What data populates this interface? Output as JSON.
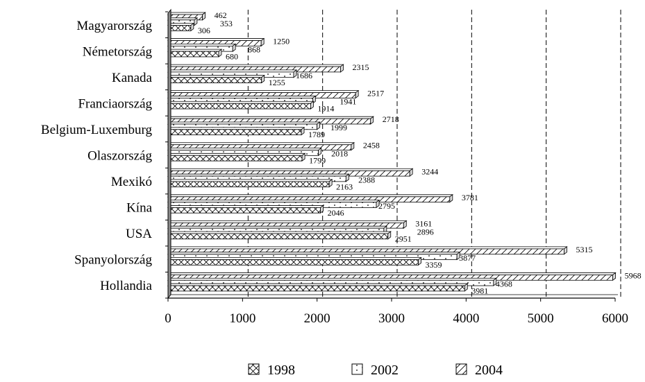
{
  "chart_data": {
    "type": "bar",
    "orientation": "horizontal",
    "categories": [
      "Magyarország",
      "Németország",
      "Kanada",
      "Franciaország",
      "Belgium-Luxemburg",
      "Olaszország",
      "Mexikó",
      "Kína",
      "USA",
      "Spanyolország",
      "Hollandia"
    ],
    "series": [
      {
        "name": "1998",
        "pattern": "crosshatch",
        "values": [
          306,
          680,
          1255,
          1914,
          1789,
          1799,
          2163,
          2046,
          2951,
          3359,
          3981
        ]
      },
      {
        "name": "2002",
        "pattern": "dots",
        "values": [
          353,
          868,
          1686,
          1941,
          1999,
          2018,
          2388,
          2795,
          2896,
          3877,
          4368
        ]
      },
      {
        "name": "2004",
        "pattern": "diagonal",
        "values": [
          462,
          1250,
          2315,
          2517,
          2718,
          2458,
          3244,
          3781,
          3161,
          5315,
          5968
        ]
      }
    ],
    "x_ticks": [
      "0",
      "1000",
      "2000",
      "3000",
      "4000",
      "5000",
      "6000"
    ],
    "xlim": [
      0,
      6000
    ],
    "grid": "vertical dashed",
    "legend_position": "bottom",
    "colors": {
      "bar_fill": "#ffffff",
      "bar_stroke": "#000000",
      "bar_end": "#d9d9d9"
    }
  }
}
